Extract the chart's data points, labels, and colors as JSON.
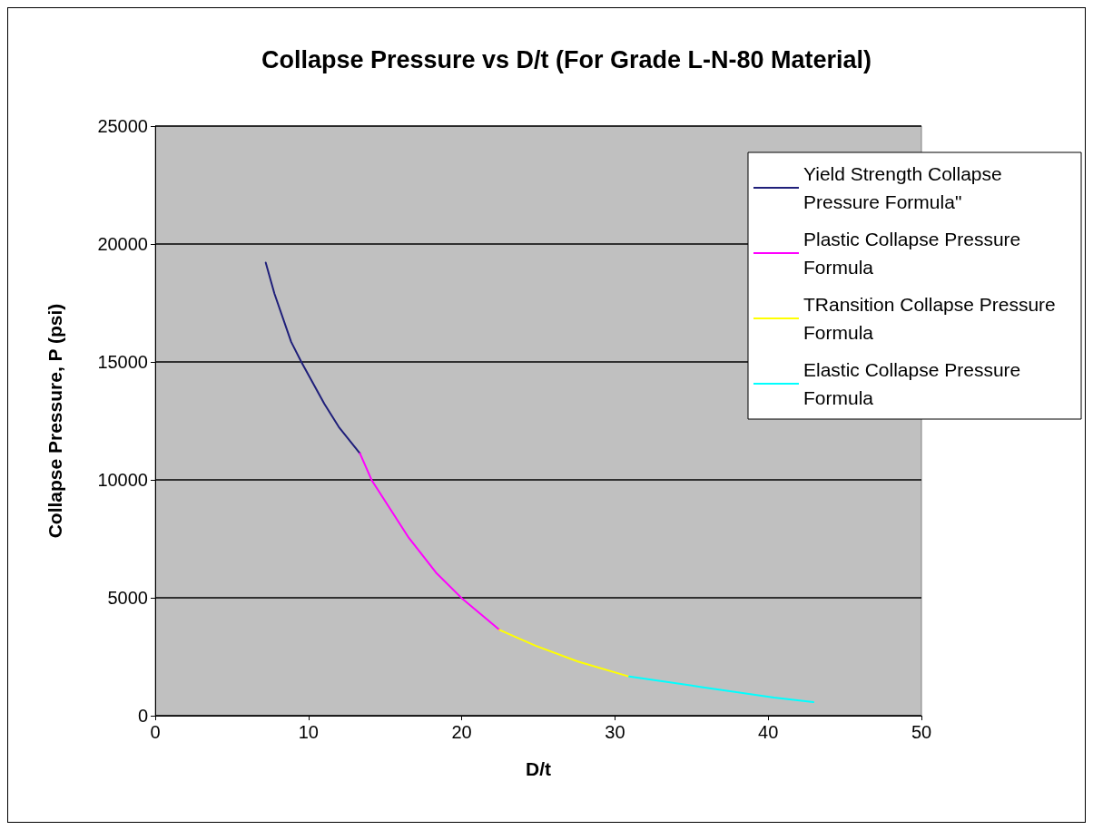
{
  "chart_data": {
    "type": "line",
    "title": "Collapse Pressure vs D/t (For Grade L-N-80 Material)",
    "xlabel": "D/t",
    "ylabel": "Collapse Pressure, P (psi)",
    "xlim": [
      0,
      50
    ],
    "xticks": [
      0,
      10,
      20,
      30,
      40,
      50
    ],
    "ylim": [
      0,
      25000
    ],
    "yticks": [
      0,
      5000,
      10000,
      15000,
      20000,
      25000
    ],
    "grid": "y",
    "legend": "right",
    "marker": "none",
    "line_style": "solid",
    "series": [
      {
        "name": "Yield Strength Collapse Pressure Formula\"",
        "color": "#1f1f7a",
        "x": [
          7.21,
          7.78,
          8.87,
          9.55,
          11.03,
          12.02,
          13.36
        ],
        "values": [
          19210,
          17895,
          15850,
          14980,
          13230,
          12205,
          11120
        ]
      },
      {
        "name": "Plastic Collapse Pressure Formula",
        "color": "#ff00ff",
        "x": [
          13.36,
          14.14,
          16.55,
          18.32,
          20.0,
          22.46
        ],
        "values": [
          11120,
          9970,
          7540,
          6070,
          4985,
          3640
        ]
      },
      {
        "name": "TRansition Collapse Pressure Formula",
        "color": "#ffff00",
        "x": [
          22.46,
          24.82,
          27.58,
          30.93
        ],
        "values": [
          3640,
          2965,
          2300,
          1660
        ]
      },
      {
        "name": "Elastic Collapse Pressure Formula",
        "color": "#00ffff",
        "x": [
          30.93,
          35.66,
          40.38,
          42.95
        ],
        "values": [
          1660,
          1215,
          767,
          575
        ]
      }
    ]
  }
}
